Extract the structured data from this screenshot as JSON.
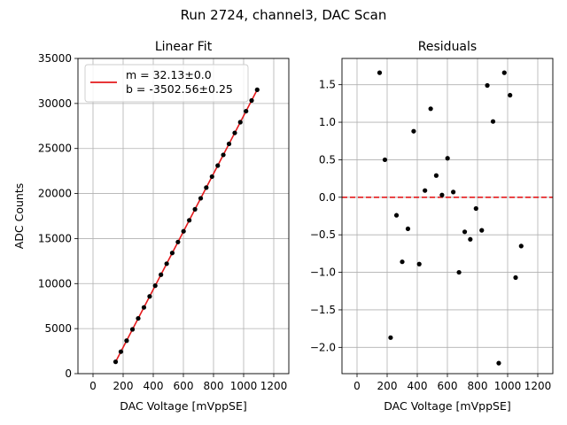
{
  "suptitle": "Run 2724, channel3, DAC Scan",
  "chart_data": [
    {
      "type": "scatter",
      "title": "Linear Fit",
      "xlabel": "DAC Voltage [mVppSE]",
      "ylabel": "ADC Counts",
      "xlim": [
        -100,
        1300
      ],
      "ylim": [
        0,
        35000
      ],
      "xticks": [
        0,
        200,
        400,
        600,
        800,
        1000,
        1200
      ],
      "xtick_labels": [
        "0",
        "200",
        "400",
        "600",
        "800",
        "1000",
        "1200"
      ],
      "yticks": [
        0,
        5000,
        10000,
        15000,
        20000,
        25000,
        30000,
        35000
      ],
      "ytick_labels": [
        "0",
        "5000",
        "10000",
        "15000",
        "20000",
        "25000",
        "30000",
        "35000"
      ],
      "grid": true,
      "legend": {
        "placement": "upper-left",
        "entries": [
          "m = 32.13±0.0",
          "b = -3502.56±0.25"
        ],
        "color": "#e41a1c"
      },
      "fit": {
        "m": 32.13,
        "b": -3502.56,
        "x_range": [
          150,
          1090
        ],
        "color": "#e41a1c"
      },
      "series": [
        {
          "marker_color": "#000000",
          "x": [
            150,
            185,
            223,
            262,
            300,
            338,
            376,
            413,
            451,
            489,
            526,
            564,
            601,
            639,
            677,
            715,
            752,
            790,
            828,
            865,
            903,
            941,
            978,
            1016,
            1053,
            1090
          ],
          "y": [
            1316,
            2441,
            3661,
            4914,
            6135,
            7356,
            8577,
            9767,
            10987,
            12208,
            13398,
            14619,
            15807,
            17029,
            18250,
            19471,
            20660,
            21882,
            23102,
            24291,
            25512,
            26732,
            27922,
            29144,
            30331,
            31521
          ]
        }
      ]
    },
    {
      "type": "scatter",
      "title": "Residuals",
      "xlabel": "DAC Voltage [mVppSE]",
      "ylabel": "",
      "xlim": [
        -100,
        1300
      ],
      "ylim": [
        -2.35,
        1.85
      ],
      "xticks": [
        0,
        200,
        400,
        600,
        800,
        1000,
        1200
      ],
      "xtick_labels": [
        "0",
        "200",
        "400",
        "600",
        "800",
        "1000",
        "1200"
      ],
      "yticks": [
        -2.0,
        -1.5,
        -1.0,
        -0.5,
        0.0,
        0.5,
        1.0,
        1.5
      ],
      "ytick_labels": [
        "−2.0",
        "−1.5",
        "−1.0",
        "−0.5",
        "0.0",
        "0.5",
        "1.0",
        "1.5"
      ],
      "grid": true,
      "reference_line": {
        "y": 0,
        "style": "dashed",
        "color": "#e41a1c"
      },
      "series": [
        {
          "marker_color": "#000000",
          "x": [
            150,
            185,
            223,
            262,
            300,
            338,
            376,
            413,
            451,
            489,
            526,
            564,
            601,
            639,
            677,
            715,
            752,
            790,
            828,
            865,
            903,
            941,
            978,
            1016,
            1053,
            1090
          ],
          "y": [
            1.66,
            0.5,
            -1.87,
            -0.24,
            -0.86,
            -0.42,
            0.88,
            -0.89,
            0.09,
            1.18,
            0.29,
            0.03,
            0.52,
            0.07,
            -1.0,
            -0.46,
            -0.56,
            -0.15,
            -0.44,
            1.49,
            1.01,
            -2.21,
            1.66,
            1.36,
            -1.07,
            -0.65
          ]
        }
      ]
    }
  ]
}
